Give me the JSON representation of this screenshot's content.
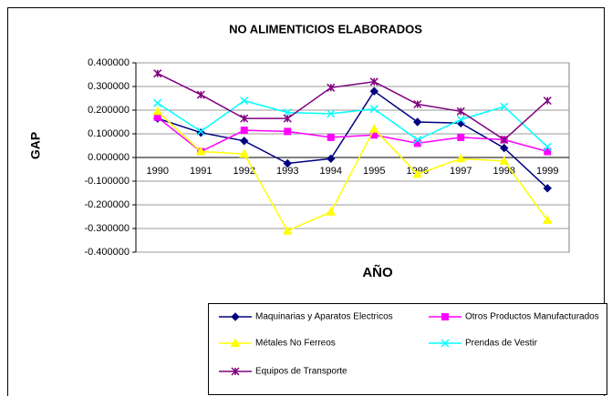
{
  "chart_data": {
    "type": "line",
    "title": "NO ALIMENTICIOS ELABORADOS",
    "x_label": "AÑO",
    "y_label": "GAP",
    "categories": [
      "1990",
      "1991",
      "1992",
      "1993",
      "1994",
      "1995",
      "1996",
      "1997",
      "1998",
      "1999"
    ],
    "ylim": [
      -0.4,
      0.4
    ],
    "yticks": [
      {
        "value": 0.4,
        "label": "0.400000"
      },
      {
        "value": 0.3,
        "label": "0.300000"
      },
      {
        "value": 0.2,
        "label": "0.200000"
      },
      {
        "value": 0.1,
        "label": "0.100000"
      },
      {
        "value": 0,
        "label": "0.000000"
      },
      {
        "value": -0.1,
        "label": "-0.100000"
      },
      {
        "value": -0.2,
        "label": "-0.200000"
      },
      {
        "value": -0.3,
        "label": "-0.300000"
      },
      {
        "value": -0.4,
        "label": "-0.400000"
      }
    ],
    "grid": true,
    "legend": "bottom",
    "series": [
      {
        "name": "Maquinarias y Aparatos Electricos",
        "color": "#000080",
        "marker": "diamond",
        "values": [
          0.165,
          0.105,
          0.07,
          -0.025,
          -0.005,
          0.28,
          0.15,
          0.145,
          0.04,
          -0.13
        ]
      },
      {
        "name": "Otros Productos Manufacturados",
        "color": "#ff00ff",
        "marker": "square",
        "values": [
          0.17,
          0.025,
          0.115,
          0.11,
          0.085,
          0.095,
          0.06,
          0.085,
          0.075,
          0.025
        ]
      },
      {
        "name": "Métales No Ferreos",
        "color": "#ffff00",
        "marker": "triangle",
        "values": [
          0.195,
          0.025,
          0.015,
          -0.31,
          -0.23,
          0.12,
          -0.07,
          -0.005,
          -0.015,
          -0.265
        ]
      },
      {
        "name": "Prendas de Vestir",
        "color": "#00ffff",
        "marker": "x",
        "values": [
          0.23,
          0.11,
          0.24,
          0.19,
          0.185,
          0.205,
          0.075,
          0.16,
          0.215,
          0.045
        ]
      },
      {
        "name": "Equipos de Transporte",
        "color": "#800080",
        "marker": "star",
        "values": [
          0.355,
          0.265,
          0.165,
          0.165,
          0.295,
          0.32,
          0.225,
          0.195,
          0.075,
          0.24
        ]
      }
    ]
  }
}
